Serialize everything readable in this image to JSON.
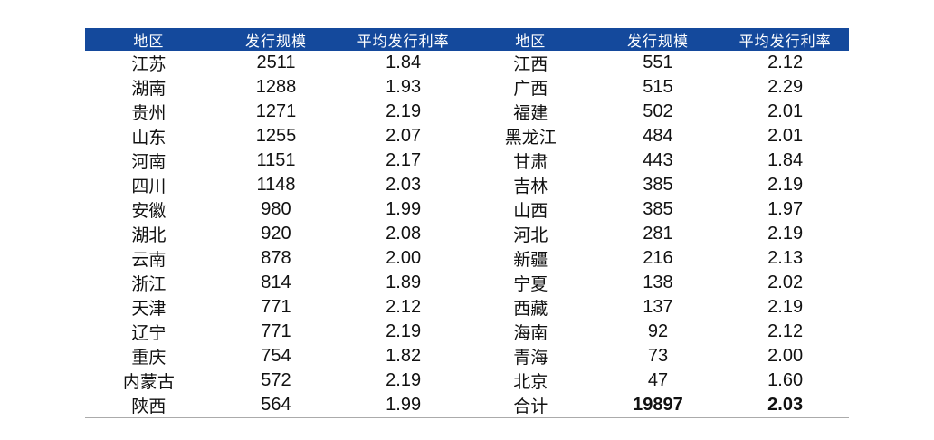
{
  "colors": {
    "header_bg": "#14499C",
    "header_text": "#FFFFFF",
    "body_text": "#111111",
    "table_bottom_border": "#ABABAB"
  },
  "table": {
    "headers": [
      "地区",
      "发行规模",
      "平均发行利率",
      "地区",
      "发行规模",
      "平均发行利率"
    ],
    "rows": [
      {
        "cells": [
          "江苏",
          "2511",
          "1.84",
          "江西",
          "551",
          "2.12"
        ]
      },
      {
        "cells": [
          "湖南",
          "1288",
          "1.93",
          "广西",
          "515",
          "2.29"
        ]
      },
      {
        "cells": [
          "贵州",
          "1271",
          "2.19",
          "福建",
          "502",
          "2.01"
        ]
      },
      {
        "cells": [
          "山东",
          "1255",
          "2.07",
          "黑龙江",
          "484",
          "2.01"
        ]
      },
      {
        "cells": [
          "河南",
          "1151",
          "2.17",
          "甘肃",
          "443",
          "1.84"
        ]
      },
      {
        "cells": [
          "四川",
          "1148",
          "2.03",
          "吉林",
          "385",
          "2.19"
        ]
      },
      {
        "cells": [
          "安徽",
          "980",
          "1.99",
          "山西",
          "385",
          "1.97"
        ]
      },
      {
        "cells": [
          "湖北",
          "920",
          "2.08",
          "河北",
          "281",
          "2.19"
        ]
      },
      {
        "cells": [
          "云南",
          "878",
          "2.00",
          "新疆",
          "216",
          "2.13"
        ]
      },
      {
        "cells": [
          "浙江",
          "814",
          "1.89",
          "宁夏",
          "138",
          "2.02"
        ]
      },
      {
        "cells": [
          "天津",
          "771",
          "2.12",
          "西藏",
          "137",
          "2.19"
        ]
      },
      {
        "cells": [
          "辽宁",
          "771",
          "2.19",
          "海南",
          "92",
          "2.12"
        ]
      },
      {
        "cells": [
          "重庆",
          "754",
          "1.82",
          "青海",
          "73",
          "2.00"
        ]
      },
      {
        "cells": [
          "内蒙古",
          "572",
          "2.19",
          "北京",
          "47",
          "1.60"
        ]
      },
      {
        "cells": [
          "陕西",
          "564",
          "1.99",
          "合计",
          "19897",
          "2.03"
        ],
        "bold_cells": [
          4,
          5
        ]
      }
    ]
  }
}
